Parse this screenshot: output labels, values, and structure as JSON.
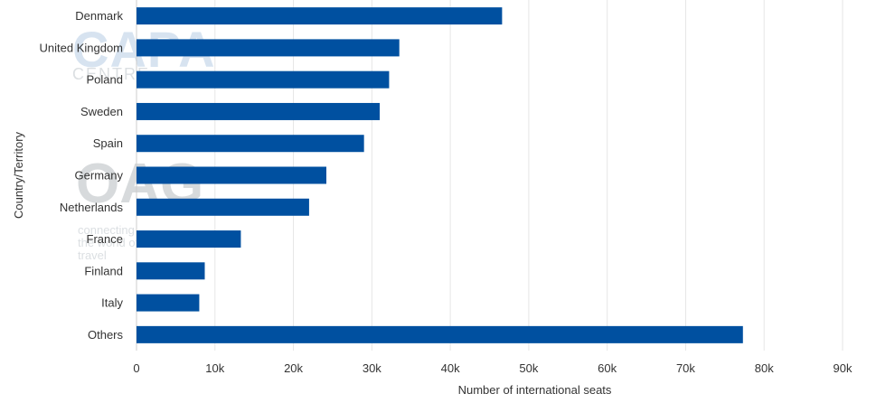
{
  "chart_data": {
    "type": "bar",
    "orientation": "horizontal",
    "categories": [
      "Denmark",
      "United Kingdom",
      "Poland",
      "Sweden",
      "Spain",
      "Germany",
      "Netherlands",
      "France",
      "Finland",
      "Italy",
      "Others"
    ],
    "values": [
      46600,
      33500,
      32200,
      31000,
      29000,
      24200,
      22000,
      13300,
      8700,
      8000,
      77300
    ],
    "xlabel": "Number of international seats",
    "ylabel": "Country/Territory",
    "xlim": [
      0,
      90000
    ],
    "xticks": [
      0,
      10000,
      20000,
      30000,
      40000,
      50000,
      60000,
      70000,
      80000,
      90000
    ],
    "xtick_labels": [
      "0",
      "10k",
      "20k",
      "30k",
      "40k",
      "50k",
      "60k",
      "70k",
      "80k",
      "90k"
    ],
    "grid": true,
    "bar_color": "#0050a0"
  },
  "watermarks": {
    "capa": "CAPA",
    "centre": "CENTRE",
    "oag": "OAG",
    "oag_tagline": "connecting the world of travel"
  }
}
